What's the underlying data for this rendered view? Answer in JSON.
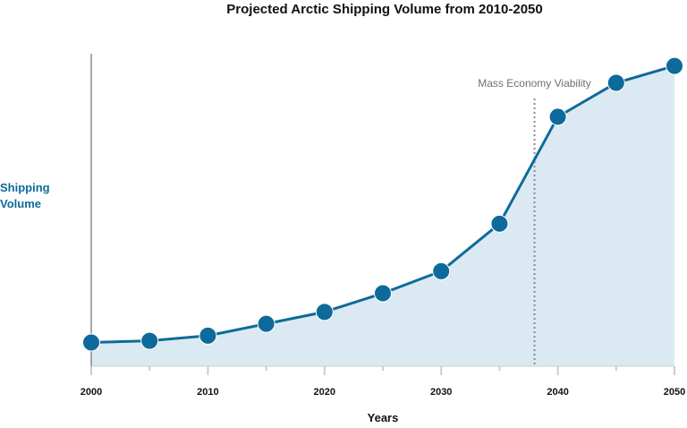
{
  "chart_data": {
    "type": "area",
    "title": "Projected Arctic Shipping Volume from 2010-2050",
    "xlabel": "Years",
    "ylabel_lines": [
      "Shipping",
      "Volume"
    ],
    "x": [
      2000,
      2005,
      2010,
      2015,
      2020,
      2025,
      2030,
      2035,
      2040,
      2045,
      2050
    ],
    "values": [
      0.07,
      0.075,
      0.09,
      0.125,
      0.16,
      0.215,
      0.28,
      0.42,
      0.735,
      0.835,
      0.885
    ],
    "xlim": [
      2000,
      2050
    ],
    "ylim": [
      0,
      1
    ],
    "x_tick_labels": [
      "2000",
      "2010",
      "2020",
      "2030",
      "2040",
      "2050"
    ],
    "x_minor_ticks": [
      2005,
      2015,
      2025,
      2035,
      2045
    ],
    "y_ticks_shown": false,
    "grid": false,
    "annotation": {
      "label": "Mass Economy Viability",
      "x": 2038,
      "style": "dotted vertical line"
    },
    "colors": {
      "line": "#0e6a9a",
      "marker": "#0e6a9a",
      "fill": "#dbe9f2",
      "ylabel": "#0e6a9a",
      "annotation_text": "#707070",
      "annotation_line": "#8a8a8a",
      "axis": "#555555",
      "tick": "#cccccc",
      "text": "#111111"
    }
  }
}
